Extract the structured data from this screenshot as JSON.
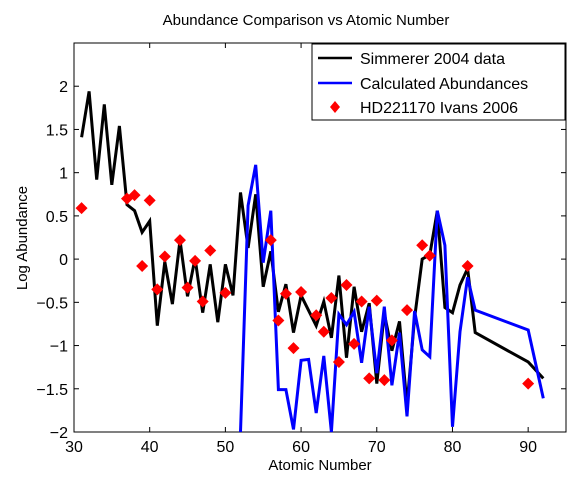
{
  "chart_data": {
    "type": "line",
    "title": "Abundance Comparison vs Atomic Number",
    "xlabel": "Atomic Number",
    "ylabel": "Log Abundance",
    "xlim": [
      30,
      95
    ],
    "ylim": [
      -2,
      2.5
    ],
    "xticks": [
      30,
      40,
      50,
      60,
      70,
      80,
      90
    ],
    "yticks": [
      -2,
      -1.5,
      -1,
      -0.5,
      0,
      0.5,
      1,
      1.5,
      2
    ],
    "xtick_labels": [
      "30",
      "40",
      "50",
      "60",
      "70",
      "80",
      "90"
    ],
    "ytick_labels": [
      "−2",
      "−1.5",
      "−1",
      "−0.5",
      "0",
      "0.5",
      "1",
      "1.5",
      "2"
    ],
    "grid": false,
    "legend_position": "top-right",
    "series": [
      {
        "name": "Simmerer 2004 data",
        "kind": "line",
        "color": "#000000",
        "points": [
          [
            31,
            1.41
          ],
          [
            32,
            1.94
          ],
          [
            33,
            0.92
          ],
          [
            34,
            1.79
          ],
          [
            35,
            0.86
          ],
          [
            36,
            1.54
          ],
          [
            37,
            0.63
          ],
          [
            38,
            0.56
          ],
          [
            39,
            0.31
          ],
          [
            40,
            0.44
          ],
          [
            41,
            -0.77
          ],
          [
            42,
            -0.03
          ],
          [
            43,
            -0.52
          ],
          [
            44,
            0.22
          ],
          [
            45,
            -0.43
          ],
          [
            46,
            0.01
          ],
          [
            47,
            -0.62
          ],
          [
            48,
            -0.06
          ],
          [
            49,
            -0.73
          ],
          [
            50,
            -0.06
          ],
          [
            51,
            -0.42
          ],
          [
            52,
            0.77
          ],
          [
            53,
            0.13
          ],
          [
            54,
            0.75
          ],
          [
            55,
            -0.32
          ],
          [
            56,
            0.09
          ],
          [
            57,
            -0.61
          ],
          [
            58,
            -0.29
          ],
          [
            59,
            -0.85
          ],
          [
            60,
            -0.42
          ],
          [
            62,
            -0.77
          ],
          [
            63,
            -0.49
          ],
          [
            64,
            -0.91
          ],
          [
            65,
            -0.19
          ],
          [
            66,
            -1.14
          ],
          [
            67,
            -0.32
          ],
          [
            68,
            -0.84
          ],
          [
            69,
            -0.51
          ],
          [
            70,
            -1.44
          ],
          [
            71,
            -0.63
          ],
          [
            72,
            -1.06
          ],
          [
            73,
            -0.72
          ],
          [
            74,
            -1.69
          ],
          [
            75,
            -0.68
          ],
          [
            76,
            0.0
          ],
          [
            77,
            0.05
          ],
          [
            78,
            0.56
          ],
          [
            79,
            -0.56
          ],
          [
            80,
            -0.62
          ],
          [
            81,
            -0.3
          ],
          [
            82,
            -0.11
          ],
          [
            83,
            -0.85
          ],
          [
            90,
            -1.19
          ],
          [
            92,
            -1.38
          ]
        ]
      },
      {
        "name": "Calculated Abundances",
        "kind": "line",
        "color": "#0000ff",
        "points": [
          [
            52,
            -2.0
          ],
          [
            53,
            0.62
          ],
          [
            54,
            1.09
          ],
          [
            55,
            -0.04
          ],
          [
            56,
            0.56
          ],
          [
            57,
            -1.51
          ],
          [
            58,
            -1.51
          ],
          [
            59,
            -1.97
          ],
          [
            60,
            -1.17
          ],
          [
            61,
            -1.16
          ],
          [
            62,
            -1.78
          ],
          [
            63,
            -1.12
          ],
          [
            64,
            -2.0
          ],
          [
            65,
            -0.64
          ],
          [
            66,
            -0.76
          ],
          [
            67,
            -0.61
          ],
          [
            68,
            -1.2
          ],
          [
            69,
            -0.55
          ],
          [
            70,
            -1.32
          ],
          [
            71,
            -0.55
          ],
          [
            72,
            -1.46
          ],
          [
            73,
            -0.85
          ],
          [
            74,
            -1.82
          ],
          [
            75,
            -0.6
          ],
          [
            76,
            -1.05
          ],
          [
            77,
            -1.13
          ],
          [
            78,
            0.56
          ],
          [
            79,
            0.16
          ],
          [
            80,
            -1.94
          ],
          [
            81,
            -0.84
          ],
          [
            82,
            -0.21
          ],
          [
            83,
            -0.59
          ],
          [
            90,
            -0.82
          ],
          [
            92,
            -1.61
          ]
        ]
      },
      {
        "name": "HD221170 Ivans 2006",
        "kind": "scatter",
        "marker": "diamond",
        "color": "#ff0000",
        "points": [
          [
            31,
            0.59
          ],
          [
            37,
            0.7
          ],
          [
            38,
            0.74
          ],
          [
            39,
            -0.08
          ],
          [
            40,
            0.68
          ],
          [
            41,
            -0.35
          ],
          [
            42,
            0.03
          ],
          [
            44,
            0.22
          ],
          [
            45,
            -0.33
          ],
          [
            46,
            -0.02
          ],
          [
            47,
            -0.49
          ],
          [
            48,
            0.1
          ],
          [
            50,
            -0.39
          ],
          [
            56,
            0.22
          ],
          [
            57,
            -0.71
          ],
          [
            58,
            -0.4
          ],
          [
            59,
            -1.03
          ],
          [
            60,
            -0.38
          ],
          [
            62,
            -0.65
          ],
          [
            63,
            -0.84
          ],
          [
            64,
            -0.45
          ],
          [
            65,
            -1.19
          ],
          [
            66,
            -0.3
          ],
          [
            67,
            -0.98
          ],
          [
            68,
            -0.49
          ],
          [
            69,
            -1.38
          ],
          [
            70,
            -0.48
          ],
          [
            71,
            -1.4
          ],
          [
            72,
            -0.94
          ],
          [
            74,
            -0.59
          ],
          [
            76,
            0.16
          ],
          [
            77,
            0.04
          ],
          [
            82,
            -0.08
          ],
          [
            90,
            -1.44
          ]
        ]
      }
    ]
  }
}
